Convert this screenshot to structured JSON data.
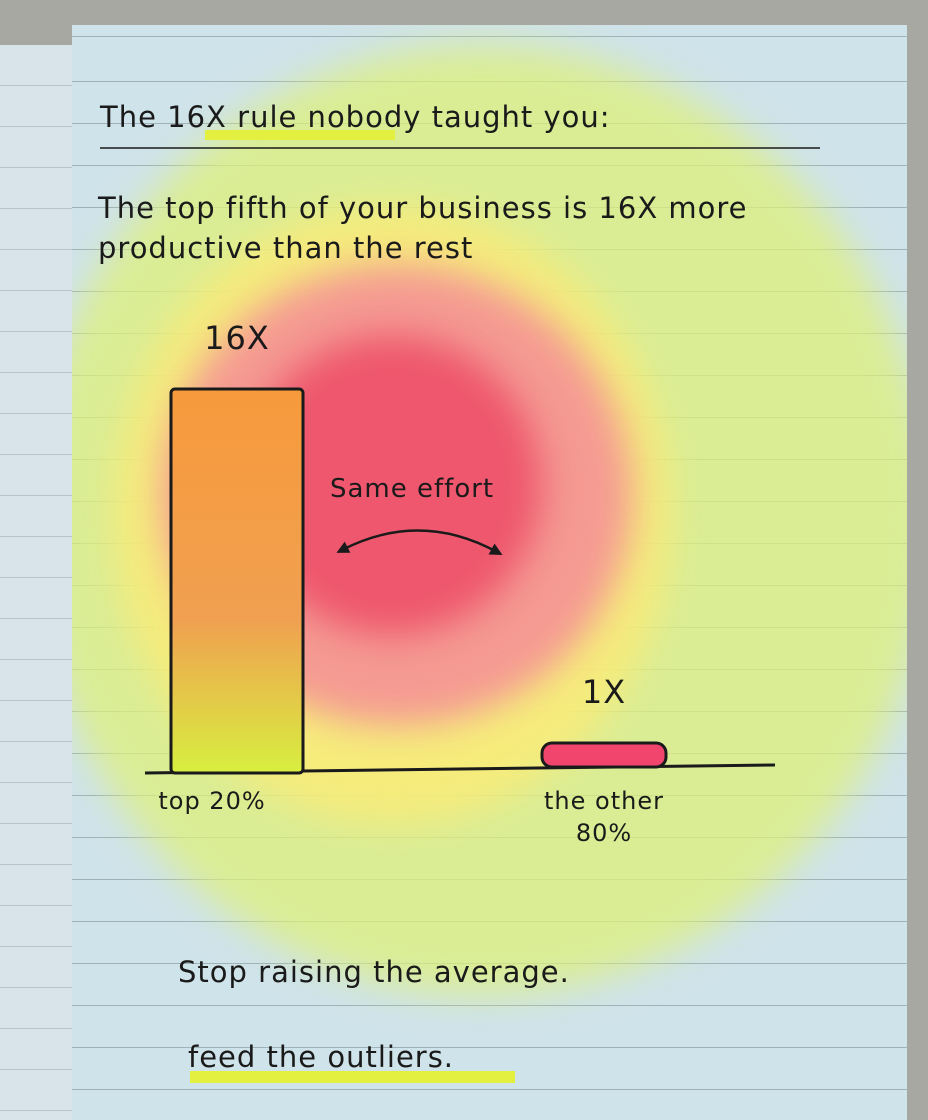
{
  "chart_data": {
    "type": "bar",
    "title": "The 16X rule nobody taught you:",
    "subtitle": "The top fifth of your business is 16X more productive than the rest",
    "categories": [
      "top 20%",
      "the other 80%"
    ],
    "values": [
      16,
      1
    ],
    "value_labels": [
      "16X",
      "1X"
    ],
    "colors": [
      "#f7a23c",
      "#f2456e"
    ],
    "annotation": "Same effort",
    "footer": [
      "Stop raising the average.",
      "feed the outliers."
    ]
  }
}
